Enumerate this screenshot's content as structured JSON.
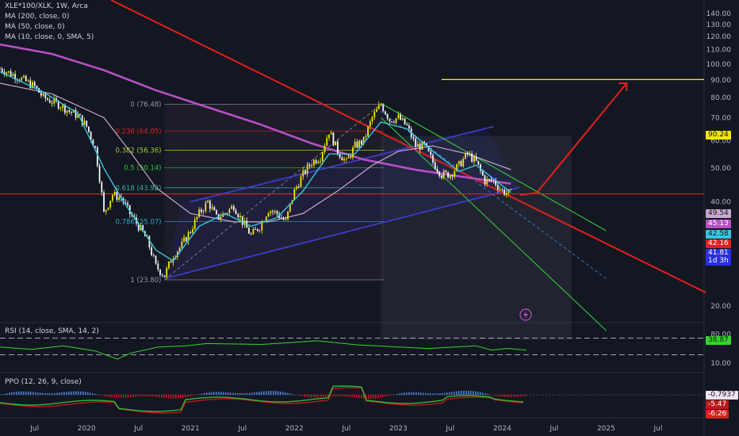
{
  "legends": {
    "symbol": "XLE*100/XLK, 1W, Arca",
    "ma200": "MA (200, close, 0)",
    "ma50": "MA (50, close, 0)",
    "ma10": "MA (10, close, 0, SMA, 5)",
    "rsi": "RSI (14, close, SMA, 14, 2)",
    "ppo": "PPO (12, 26, 9, close)"
  },
  "colors": {
    "background": "#131722",
    "up_candle": "#f2e600",
    "down_candle": "#f5f5f5",
    "ma200": "#b84fc6",
    "ma50": "#c9a8cf",
    "ma10": "#36c7e0",
    "trend_red": "#e0201e",
    "channel_green": "#35c43a",
    "channel_blue": "#3f3fd6",
    "target_yellow": "#f2e600",
    "rsi_line": "#33d62a",
    "ppo_up": "#2fb83a",
    "ppo_down": "#c0181a"
  },
  "price_axis": {
    "ticks": [
      "140.00",
      "130.00",
      "120.00",
      "110.00",
      "100.00",
      "90.00",
      "80.00",
      "70.00",
      "60.00",
      "50.00",
      "40.00",
      "30.00",
      "20.00"
    ]
  },
  "price_labels": [
    {
      "text": "90.24",
      "bg": "#f2e600",
      "fg": "#131722"
    },
    {
      "text": "49.54",
      "bg": "#c9a8cf",
      "fg": "#131722"
    },
    {
      "text": "45.13",
      "bg": "#b84fc6",
      "fg": "#ffffff"
    },
    {
      "text": "42.58",
      "bg": "#36c7e0",
      "fg": "#131722"
    },
    {
      "text": "42.16",
      "bg": "#e0201e",
      "fg": "#ffffff"
    },
    {
      "text": "41.81",
      "bg": "#2a2ee8",
      "fg": "#ffffff"
    },
    {
      "text": "1d 3h",
      "bg": "#2a2ee8",
      "fg": "#ffffff"
    }
  ],
  "fib_levels": [
    {
      "label": "0 (76.48)",
      "color": "#9598a1"
    },
    {
      "label": "0.236 (64.05)",
      "color": "#e0201e"
    },
    {
      "label": "0.382 (56.36)",
      "color": "#9fd12a"
    },
    {
      "label": "0.5 (50.14)",
      "color": "#35c43a"
    },
    {
      "label": "0.618 (43.92)",
      "color": "#2fb894"
    },
    {
      "label": "0.786 (35.07)",
      "color": "#2fa6c4"
    },
    {
      "label": "1 (23.80)",
      "color": "#9598a1"
    }
  ],
  "rsi_axis": {
    "ticks": [
      "80.00",
      "10.00"
    ],
    "value": "38.87"
  },
  "ppo_axis": {
    "values": [
      "-0.7937",
      "-5.47",
      "-6.26"
    ]
  },
  "time_axis": {
    "labels": [
      "Jul",
      "2020",
      "Jul",
      "2021",
      "Jul",
      "2022",
      "Jul",
      "2023",
      "Jul",
      "2024",
      "Jul",
      "2025",
      "Jul"
    ]
  },
  "chart_data": {
    "type": "candlestick",
    "title": "XLE*100/XLK, 1W, Arca",
    "ylim": [
      16,
      145
    ],
    "y_scale": "log",
    "grid": false,
    "x_start": "2019-03",
    "x_end": "2025-09",
    "series": [
      {
        "name": "XLE*100/XLK",
        "points": [
          [
            "2019-03",
            97
          ],
          [
            "2019-05",
            92
          ],
          [
            "2019-07",
            86
          ],
          [
            "2019-08",
            80
          ],
          [
            "2019-10",
            76
          ],
          [
            "2019-11",
            73
          ],
          [
            "2019-12",
            71
          ],
          [
            "2020-01",
            66
          ],
          [
            "2020-02",
            57
          ],
          [
            "2020-03",
            37
          ],
          [
            "2020-04",
            42
          ],
          [
            "2020-05",
            41
          ],
          [
            "2020-06",
            37
          ],
          [
            "2020-08",
            31
          ],
          [
            "2020-09",
            26
          ],
          [
            "2020-10",
            24.5
          ],
          [
            "2020-11",
            28
          ],
          [
            "2020-12",
            30
          ],
          [
            "2021-01",
            33
          ],
          [
            "2021-02",
            37
          ],
          [
            "2021-03",
            40
          ],
          [
            "2021-04",
            36
          ],
          [
            "2021-05",
            37
          ],
          [
            "2021-06",
            39
          ],
          [
            "2021-07",
            35
          ],
          [
            "2021-08",
            32
          ],
          [
            "2021-09",
            34
          ],
          [
            "2021-10",
            38
          ],
          [
            "2021-11",
            37
          ],
          [
            "2021-12",
            35
          ],
          [
            "2022-01",
            43
          ],
          [
            "2022-02",
            48
          ],
          [
            "2022-03",
            52
          ],
          [
            "2022-04",
            54
          ],
          [
            "2022-05",
            64
          ],
          [
            "2022-06",
            56
          ],
          [
            "2022-07",
            52
          ],
          [
            "2022-08",
            58
          ],
          [
            "2022-09",
            60
          ],
          [
            "2022-10",
            70
          ],
          [
            "2022-11",
            76.5
          ],
          [
            "2022-12",
            69
          ],
          [
            "2023-01",
            70
          ],
          [
            "2023-02",
            66
          ],
          [
            "2023-03",
            58
          ],
          [
            "2023-04",
            58
          ],
          [
            "2023-05",
            52
          ],
          [
            "2023-06",
            48
          ],
          [
            "2023-07",
            48
          ],
          [
            "2023-08",
            51
          ],
          [
            "2023-09",
            55
          ],
          [
            "2023-10",
            52
          ],
          [
            "2023-11",
            46
          ],
          [
            "2023-12",
            46
          ],
          [
            "2024-01",
            43
          ],
          [
            "2024-02",
            42.16
          ]
        ]
      },
      {
        "name": "MA (200, close, 0)",
        "points": [
          [
            "2019-03",
            114
          ],
          [
            "2019-09",
            107
          ],
          [
            "2020-03",
            96
          ],
          [
            "2020-09",
            84
          ],
          [
            "2021-03",
            75
          ],
          [
            "2021-09",
            67
          ],
          [
            "2022-03",
            59
          ],
          [
            "2022-09",
            53
          ],
          [
            "2023-03",
            49.5
          ],
          [
            "2023-09",
            47
          ],
          [
            "2024-02",
            45.13
          ]
        ]
      },
      {
        "name": "MA (50, close, 0)",
        "points": [
          [
            "2019-03",
            88
          ],
          [
            "2019-09",
            82
          ],
          [
            "2020-03",
            70
          ],
          [
            "2020-06",
            56
          ],
          [
            "2020-09",
            44
          ],
          [
            "2021-01",
            37
          ],
          [
            "2021-06",
            35
          ],
          [
            "2021-10",
            35
          ],
          [
            "2022-02",
            37
          ],
          [
            "2022-06",
            43
          ],
          [
            "2022-10",
            51
          ],
          [
            "2023-01",
            56
          ],
          [
            "2023-05",
            58
          ],
          [
            "2023-09",
            55
          ],
          [
            "2024-02",
            49.54
          ]
        ]
      },
      {
        "name": "MA (10, close, 0, SMA, 5)",
        "points": [
          [
            "2019-03",
            95
          ],
          [
            "2019-08",
            83
          ],
          [
            "2019-12",
            72
          ],
          [
            "2020-03",
            50
          ],
          [
            "2020-05",
            41
          ],
          [
            "2020-09",
            29
          ],
          [
            "2020-11",
            27
          ],
          [
            "2021-02",
            34
          ],
          [
            "2021-05",
            37
          ],
          [
            "2021-08",
            34
          ],
          [
            "2021-11",
            36
          ],
          [
            "2022-02",
            43
          ],
          [
            "2022-05",
            55
          ],
          [
            "2022-08",
            55
          ],
          [
            "2022-11",
            68
          ],
          [
            "2023-02",
            65
          ],
          [
            "2023-05",
            56
          ],
          [
            "2023-08",
            49
          ],
          [
            "2023-10",
            51
          ],
          [
            "2024-02",
            42.58
          ]
        ]
      }
    ],
    "annotations": [
      {
        "type": "horizontal_line",
        "value": 90.24,
        "color": "#f2e600"
      },
      {
        "type": "horizontal_line",
        "value": 42.16,
        "color": "#e0201e"
      }
    ],
    "rsi": {
      "name": "RSI (14, close, SMA, 14, 2)",
      "ylim": [
        0,
        100
      ],
      "levels": [
        70,
        30
      ],
      "last": 38.87
    },
    "ppo": {
      "name": "PPO (12, 26, 9, close)",
      "last": [
        -0.7937,
        -5.47,
        -6.26
      ]
    }
  }
}
